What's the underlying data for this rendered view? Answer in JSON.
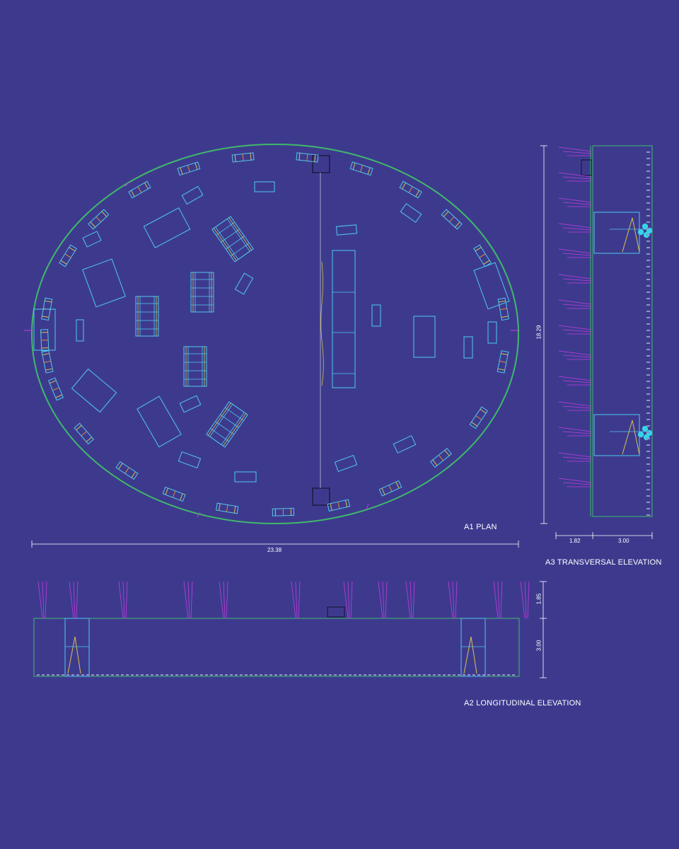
{
  "colors": {
    "background": "#3d3a8e",
    "outline_green": "#3fb96a",
    "furniture_cyan": "#4fc8ec",
    "accent_yellow": "#d8c24a",
    "accent_orange": "#e08a3a",
    "plant_magenta": "#c23de0",
    "dim_line": "#ffffff",
    "dark_line": "#14122e"
  },
  "plan": {
    "title": "A1 PLAN",
    "width_dim": "23.38",
    "depth_dim": "18.29"
  },
  "transversal": {
    "title": "A3 TRANSVERSAL ELEVATION",
    "dim_left": "1.82",
    "dim_right": "3.00"
  },
  "longitudinal": {
    "title": "A2 LONGITUDINAL ELEVATION",
    "dim_top": "1.85",
    "dim_bottom": "3.00"
  }
}
